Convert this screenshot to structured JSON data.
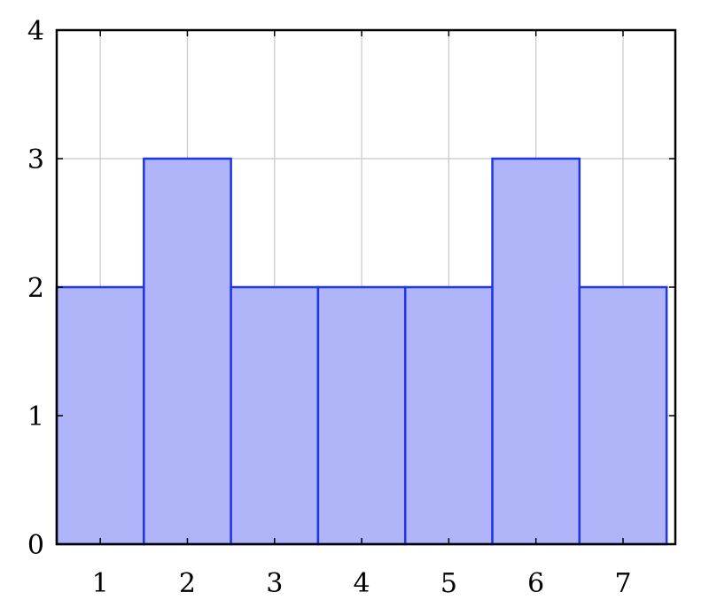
{
  "chart_data": {
    "type": "bar",
    "categories": [
      "1",
      "2",
      "3",
      "4",
      "5",
      "6",
      "7"
    ],
    "values": [
      2,
      3,
      2,
      2,
      2,
      3,
      2
    ],
    "title": "",
    "xlabel": "",
    "ylabel": "",
    "ylim": [
      0,
      4
    ],
    "xlim": [
      0.5,
      7.6
    ],
    "yticks": [
      0,
      1,
      2,
      3,
      4
    ],
    "xticks": [
      1,
      2,
      3,
      4,
      5,
      6,
      7
    ],
    "grid": true,
    "bar_fill": "#b0b4f8",
    "bar_stroke": "#1f35e6",
    "grid_color": "#c8c8c8",
    "axis_color": "#000000"
  }
}
